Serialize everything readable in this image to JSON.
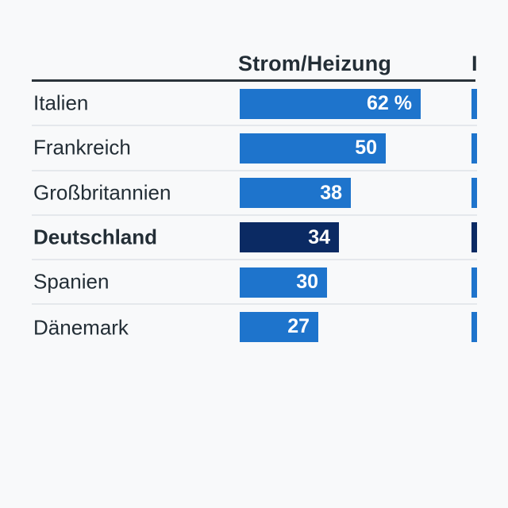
{
  "page": {
    "background": "#f8f9fa"
  },
  "colors": {
    "bar_blue": "#1e74cc",
    "bar_navy": "#0b2a63",
    "text_dark": "#232e36",
    "separator": "#e5e8ec",
    "header_rule": "#2a333a",
    "value_text": "#ffffff"
  },
  "header": {
    "column1": "Strom/Heizung",
    "column2_partial": "I"
  },
  "table": {
    "rows": [
      {
        "label": "Italien",
        "display": "62 %",
        "value": 62,
        "emphasis": false
      },
      {
        "label": "Frankreich",
        "display": "50",
        "value": 50,
        "emphasis": false
      },
      {
        "label": "Großbritannien",
        "display": "38",
        "value": 38,
        "emphasis": false
      },
      {
        "label": "Deutschland",
        "display": "34",
        "value": 34,
        "emphasis": true
      },
      {
        "label": "Spanien",
        "display": "30",
        "value": 30,
        "emphasis": false
      },
      {
        "label": "Dänemark",
        "display": "27",
        "value": 27,
        "emphasis": false
      }
    ]
  },
  "chart_data": {
    "type": "bar",
    "orientation": "horizontal",
    "title": "Strom/Heizung",
    "categories": [
      "Italien",
      "Frankreich",
      "Großbritannien",
      "Deutschland",
      "Spanien",
      "Dänemark"
    ],
    "values": [
      62,
      50,
      38,
      34,
      30,
      27
    ],
    "unit": "%",
    "value_labels": [
      "62 %",
      "50",
      "38",
      "34",
      "30",
      "27"
    ],
    "highlighted_category": "Deutschland",
    "second_column_header_partial": "I",
    "legend": "none",
    "grid": false,
    "xlim": [
      0,
      100
    ]
  }
}
